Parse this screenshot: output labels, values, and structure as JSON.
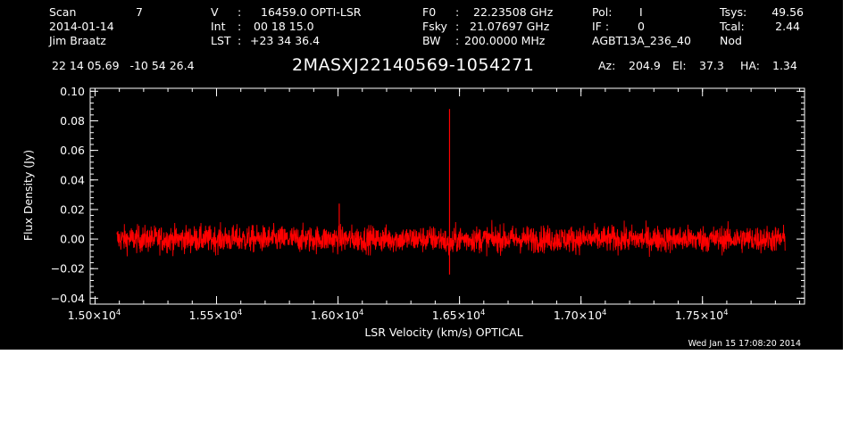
{
  "header": {
    "col1": {
      "r1_label": "Scan",
      "r1_value": "7",
      "r2": "2014-01-14",
      "r3": "Jim Braatz"
    },
    "col2": {
      "r1_label": "V",
      "r1_sep": ":",
      "r1_value": "16459.0 OPTI-LSR",
      "r2_label": "Int",
      "r2_sep": ":",
      "r2_value": "00 18 15.0",
      "r3_label": "LST",
      "r3_sep": ":",
      "r3_value": "+23 34 36.4"
    },
    "col3": {
      "r1_label": "F0",
      "r1_sep": ":",
      "r1_value": "22.23508 GHz",
      "r2_label": "Fsky",
      "r2_sep": ":",
      "r2_value": "21.07697 GHz",
      "r3_label": "BW",
      "r3_sep": ":",
      "r3_value": "200.0000 MHz"
    },
    "col4": {
      "r1_label": "Pol:",
      "r1_value": "I",
      "r2_label": "IF :",
      "r2_value": "0",
      "r3": "AGBT13A_236_40"
    },
    "col5": {
      "r1_label": "Tsys:",
      "r1_value": "49.56",
      "r2_label": "Tcal:",
      "r2_value": "2.44",
      "r3": "Nod"
    },
    "coords": "22 14 05.69   -10 54 26.4",
    "source": "2MASXJ22140569-1054271",
    "az_label": "Az:",
    "az_value": "204.9",
    "el_label": "El:",
    "el_value": "37.3",
    "ha_label": "HA:",
    "ha_value": "1.34"
  },
  "footer": {
    "timestamp": "Wed Jan 15 17:08:20 2014"
  },
  "colors": {
    "background": "#000000",
    "axes": "#ffffff",
    "trace": "#ff0000"
  },
  "chart_data": {
    "type": "line",
    "xlabel": "LSR Velocity (km/s) OPTICAL",
    "ylabel": "Flux Density (Jy)",
    "xlim": [
      14980,
      17920
    ],
    "ylim": [
      -0.044,
      0.102
    ],
    "x_ticks": [
      15000,
      15500,
      16000,
      16500,
      17000,
      17500
    ],
    "x_tick_labels": [
      {
        "mant": "1.50×10",
        "exp": "4"
      },
      {
        "mant": "1.55×10",
        "exp": "4"
      },
      {
        "mant": "1.60×10",
        "exp": "4"
      },
      {
        "mant": "1.65×10",
        "exp": "4"
      },
      {
        "mant": "1.70×10",
        "exp": "4"
      },
      {
        "mant": "1.75×10",
        "exp": "4"
      }
    ],
    "y_ticks": [
      -0.04,
      -0.02,
      0.0,
      0.02,
      0.04,
      0.06,
      0.08,
      0.1
    ],
    "y_tick_labels": [
      "−0.04",
      "−0.02",
      "0.00",
      "0.02",
      "0.04",
      "0.06",
      "0.08",
      "0.10"
    ],
    "series": [
      {
        "x_start": 15090,
        "x_end": 17840,
        "noise_rms": 0.0045,
        "features": [
          {
            "x": 16459,
            "y": 0.088,
            "type": "spike"
          },
          {
            "x": 16005,
            "y": 0.024,
            "type": "spike"
          },
          {
            "x": 16459,
            "y": -0.024,
            "type": "dip"
          }
        ]
      }
    ]
  }
}
